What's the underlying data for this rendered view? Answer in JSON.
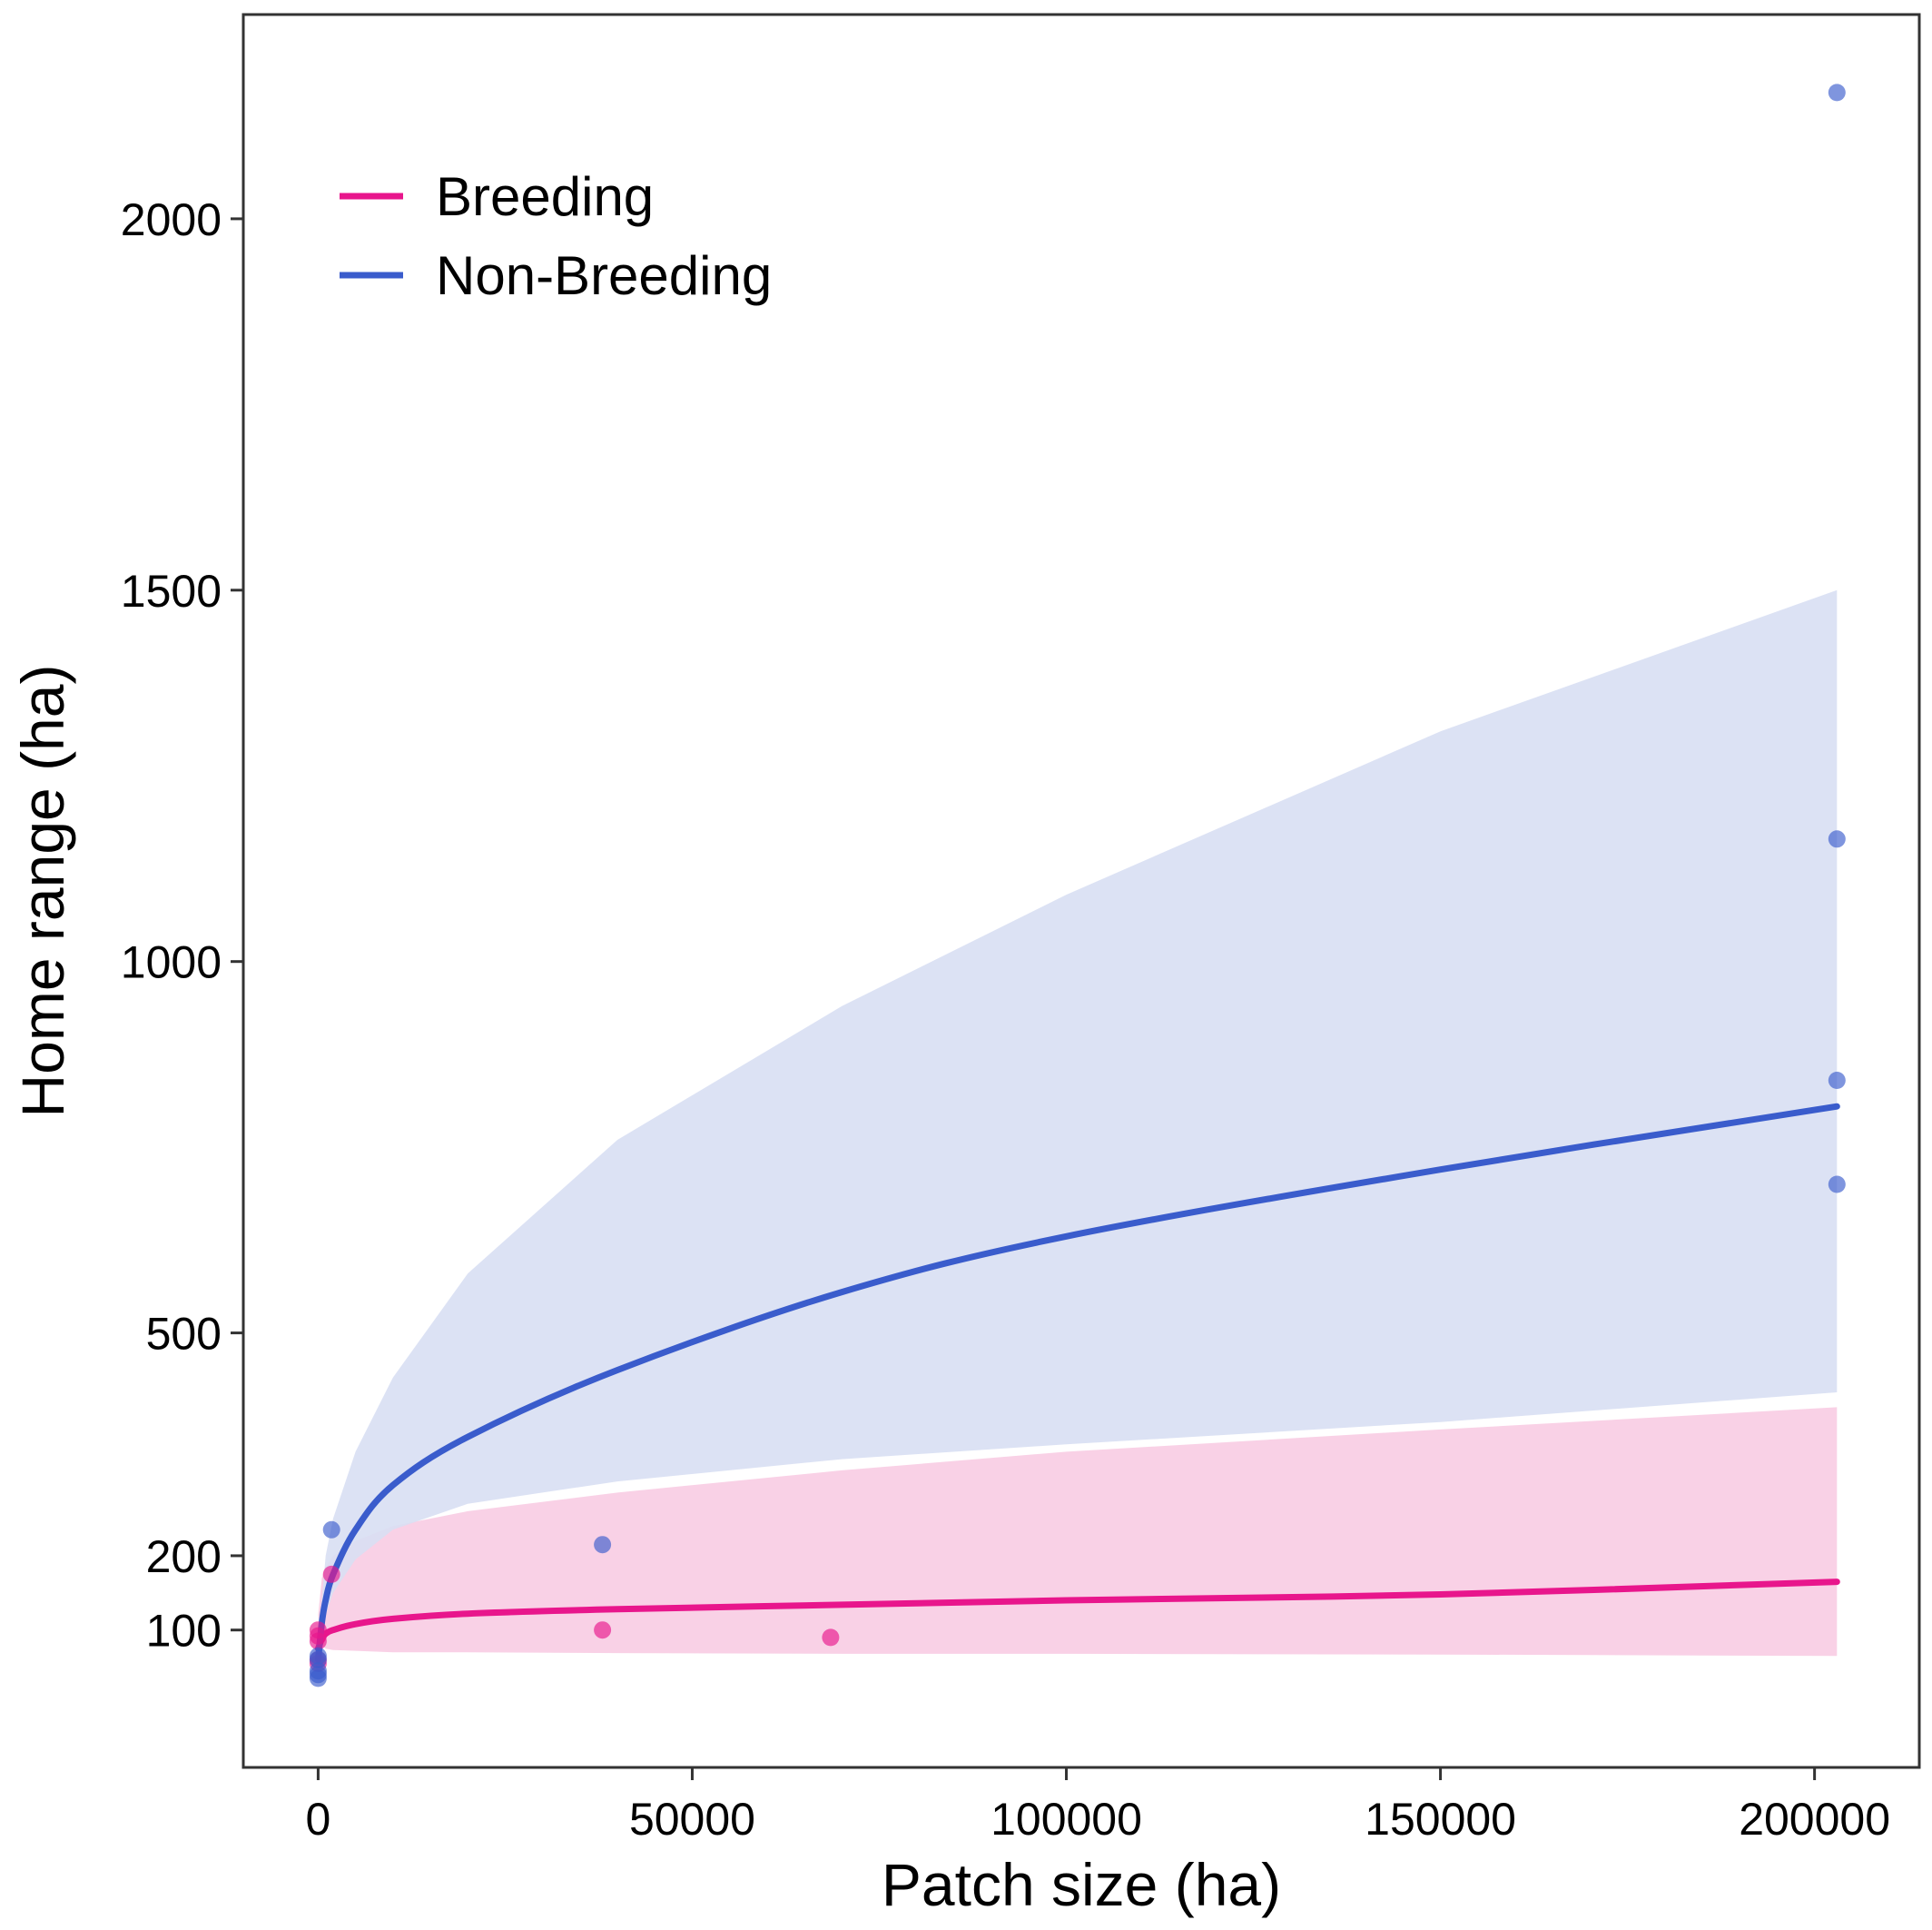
{
  "chart_data": {
    "type": "scatter",
    "xlabel": "Patch size (ha)",
    "ylabel": "Home range (ha)",
    "x_ticks": [
      0,
      50000,
      100000,
      150000,
      200000
    ],
    "x_tick_labels": [
      "0",
      "50000",
      "100000",
      "150000",
      "200000"
    ],
    "y_ticks": [
      100,
      200,
      500,
      1000,
      1500,
      2000
    ],
    "y_tick_labels": [
      "100",
      "200",
      "500",
      "1000",
      "1500",
      "2000"
    ],
    "xlim": [
      -10000,
      214000
    ],
    "ylim": [
      -85,
      2275
    ],
    "grid": false,
    "legend_position": "top-left",
    "series": [
      {
        "name": "Breeding",
        "color": "#e8168c",
        "band_color": "#f9cfe5",
        "points": [
          {
            "x": 0,
            "y": 100
          },
          {
            "x": 0,
            "y": 92
          },
          {
            "x": 0,
            "y": 85
          },
          {
            "x": 0,
            "y": 60
          },
          {
            "x": 0,
            "y": 55
          },
          {
            "x": 1800,
            "y": 175
          },
          {
            "x": 38000,
            "y": 100
          },
          {
            "x": 68500,
            "y": 90
          }
        ],
        "fit": {
          "x": [
            0,
            500,
            1000,
            2000,
            5000,
            10000,
            20000,
            40000,
            70000,
            100000,
            150000,
            203000
          ],
          "y": [
            75,
            88,
            95,
            100,
            108,
            115,
            122,
            128,
            134,
            140,
            148,
            165
          ],
          "lower": [
            120,
            80,
            75,
            73,
            72,
            70,
            70,
            69,
            68,
            68,
            67,
            65
          ],
          "upper": [
            120,
            170,
            185,
            200,
            220,
            240,
            260,
            285,
            315,
            340,
            370,
            400
          ]
        }
      },
      {
        "name": "Non-Breeding",
        "color": "#3a5ccc",
        "band_color": "#d8dff3",
        "points": [
          {
            "x": 0,
            "y": 65
          },
          {
            "x": 0,
            "y": 60
          },
          {
            "x": 0,
            "y": 45
          },
          {
            "x": 0,
            "y": 40
          },
          {
            "x": 0,
            "y": 35
          },
          {
            "x": 1800,
            "y": 235
          },
          {
            "x": 38000,
            "y": 215
          },
          {
            "x": 203000,
            "y": 2170
          },
          {
            "x": 203000,
            "y": 1165
          },
          {
            "x": 203000,
            "y": 840
          },
          {
            "x": 203000,
            "y": 700
          }
        ],
        "fit": {
          "x": [
            0,
            500,
            1000,
            2000,
            5000,
            10000,
            20000,
            40000,
            70000,
            100000,
            150000,
            203000
          ],
          "y": [
            60,
            110,
            140,
            175,
            235,
            295,
            360,
            450,
            555,
            630,
            720,
            805
          ],
          "lower": [
            100,
            100,
            120,
            150,
            195,
            235,
            270,
            300,
            330,
            350,
            380,
            420
          ],
          "upper": [
            100,
            140,
            200,
            250,
            340,
            440,
            580,
            760,
            940,
            1090,
            1310,
            1500
          ]
        }
      }
    ]
  }
}
